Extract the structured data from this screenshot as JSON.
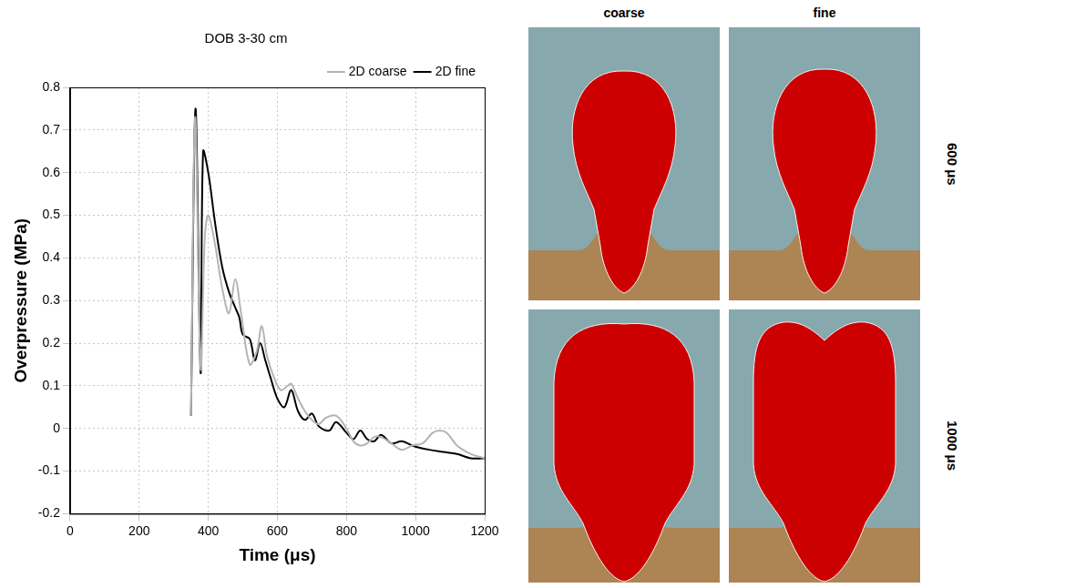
{
  "chart_data": {
    "type": "line",
    "title": "DOB 3-30 cm",
    "x_label": "Time (μs)",
    "y_label": "Overpressure (MPa)",
    "xlim": [
      0,
      1200
    ],
    "xticks": [
      0,
      200,
      400,
      600,
      800,
      1000,
      1200
    ],
    "ylim": [
      -0.2,
      0.8
    ],
    "yticks": [
      -0.2,
      -0.1,
      0,
      0.1,
      0.2,
      0.3,
      0.4,
      0.5,
      0.6,
      0.7,
      0.8
    ],
    "grid": true,
    "legend": "upper right",
    "series": [
      {
        "name": "2D coarse",
        "color": "#b4b4b4",
        "x": [
          350,
          362,
          378,
          390,
          400,
          420,
          440,
          460,
          478,
          495,
          520,
          540,
          555,
          570,
          590,
          610,
          630,
          640,
          660,
          680,
          700,
          720,
          740,
          770,
          800,
          820,
          840,
          860,
          880,
          900,
          930,
          960,
          990,
          1020,
          1050,
          1070,
          1090,
          1120,
          1160,
          1200
        ],
        "values": [
          0.03,
          0.73,
          0.14,
          0.45,
          0.5,
          0.43,
          0.33,
          0.27,
          0.35,
          0.27,
          0.15,
          0.18,
          0.24,
          0.17,
          0.12,
          0.09,
          0.1,
          0.105,
          0.07,
          0.04,
          0.02,
          0.01,
          0.025,
          0.03,
          0.0,
          -0.03,
          -0.04,
          -0.035,
          -0.02,
          -0.02,
          -0.035,
          -0.05,
          -0.04,
          -0.035,
          -0.01,
          -0.005,
          -0.01,
          -0.04,
          -0.06,
          -0.07
        ]
      },
      {
        "name": "2D fine",
        "color": "#000000",
        "x": [
          350,
          363,
          378,
          385,
          400,
          420,
          440,
          460,
          480,
          490,
          500,
          520,
          535,
          550,
          565,
          580,
          600,
          620,
          640,
          660,
          680,
          700,
          720,
          750,
          770,
          800,
          820,
          840,
          860,
          880,
          900,
          930,
          960,
          990,
          1010,
          1040,
          1080,
          1120,
          1160,
          1200
        ],
        "values": [
          0.03,
          0.75,
          0.13,
          0.65,
          0.6,
          0.48,
          0.38,
          0.32,
          0.28,
          0.26,
          0.22,
          0.21,
          0.16,
          0.2,
          0.16,
          0.12,
          0.07,
          0.05,
          0.09,
          0.04,
          0.02,
          0.035,
          0.005,
          -0.005,
          0.015,
          -0.01,
          -0.025,
          -0.005,
          -0.025,
          -0.03,
          -0.015,
          -0.035,
          -0.03,
          -0.04,
          -0.045,
          -0.05,
          -0.055,
          -0.06,
          -0.07,
          -0.07
        ]
      }
    ]
  },
  "panels": {
    "column_titles": [
      "coarse",
      "fine"
    ],
    "row_labels": [
      "600 μs",
      "1000 μs"
    ]
  }
}
